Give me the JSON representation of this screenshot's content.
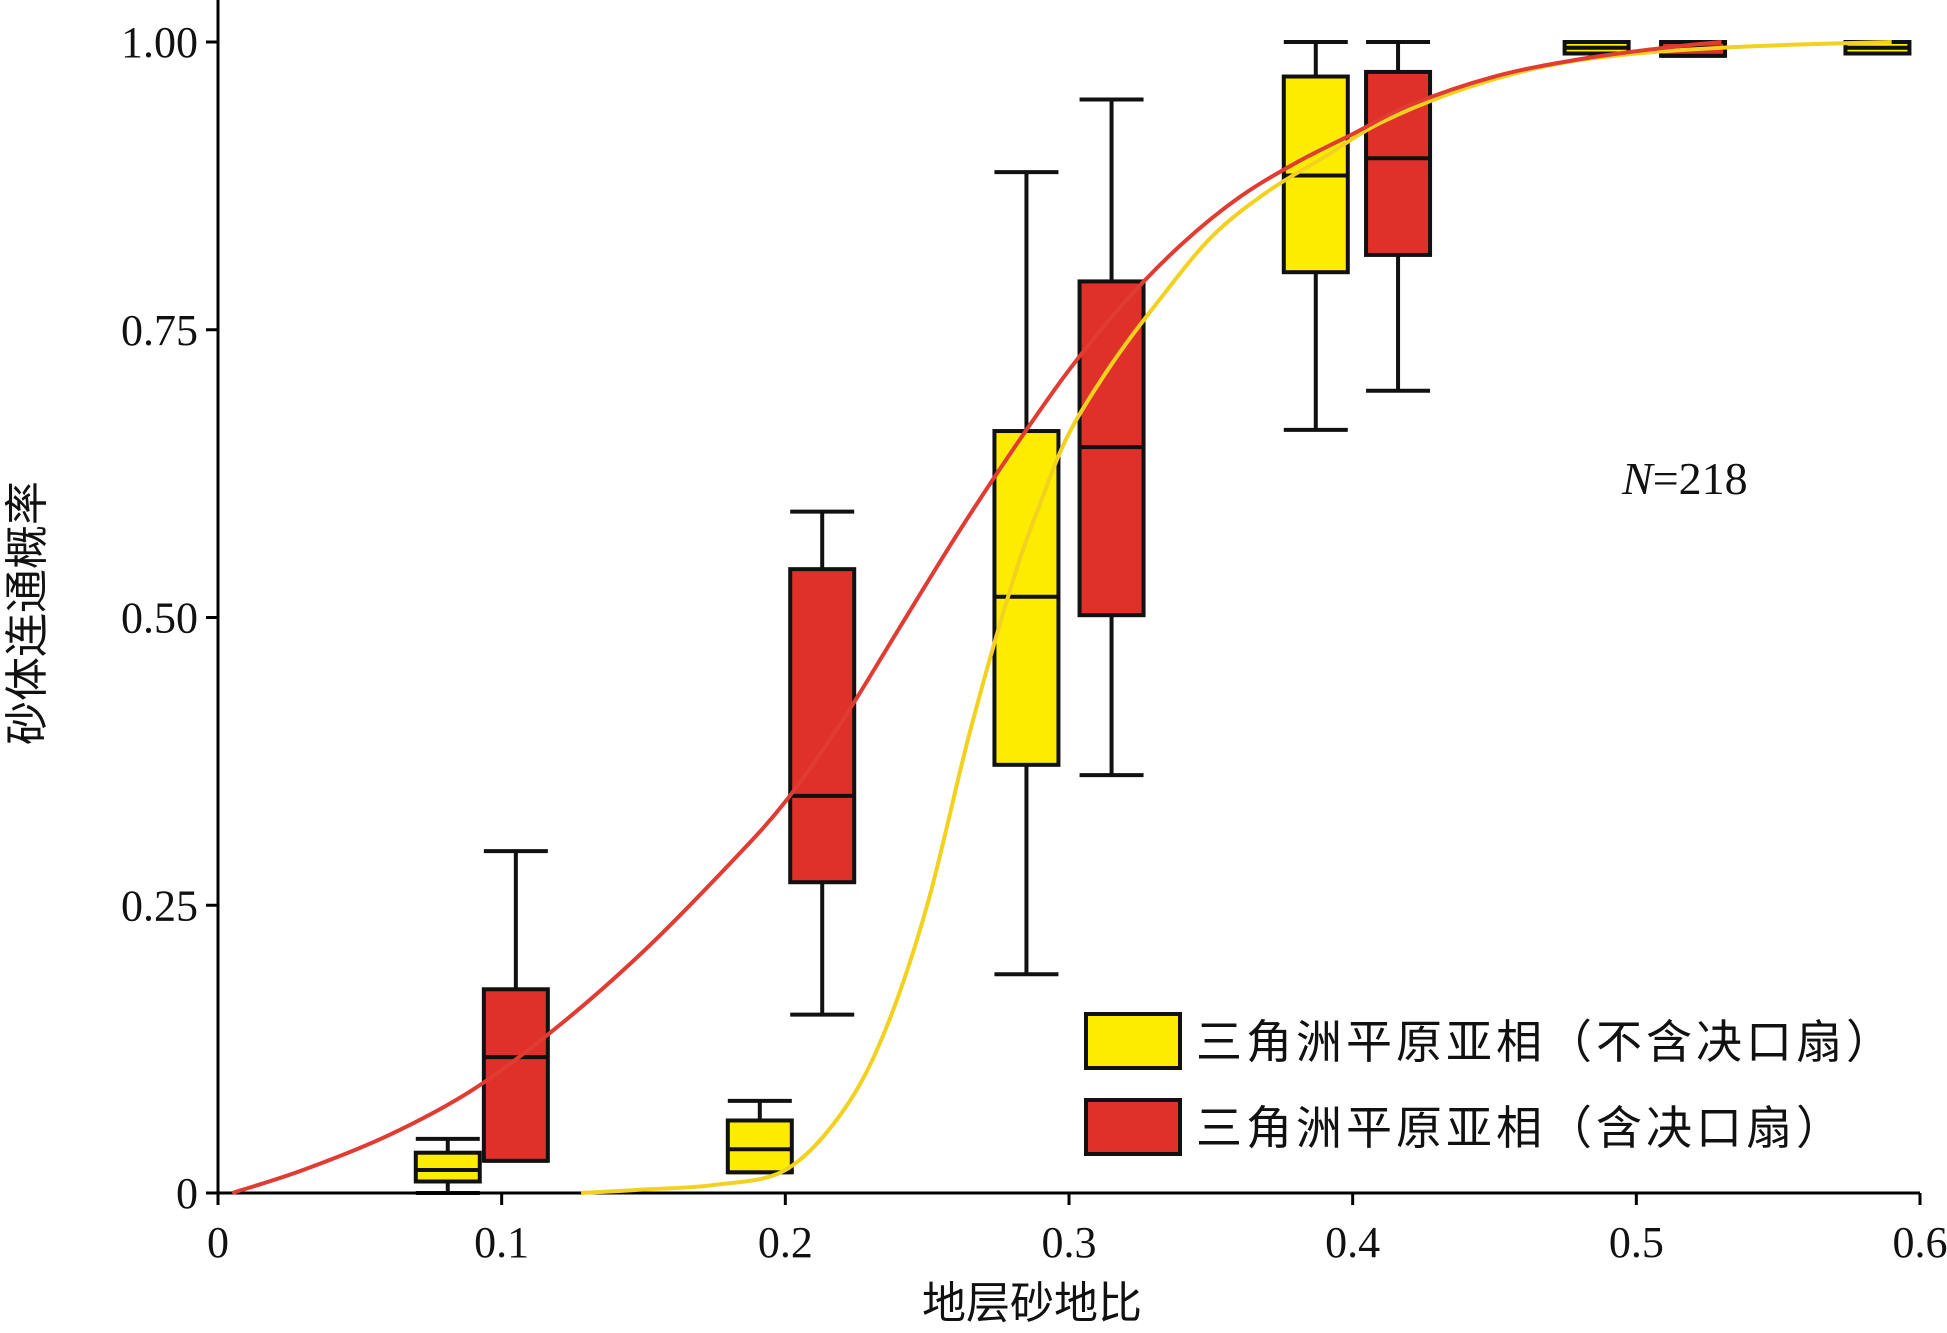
{
  "chart_data": {
    "type": "box",
    "xlabel": "地层砂地比",
    "ylabel": "砂体连通概率",
    "xlim": [
      0,
      0.6
    ],
    "ylim": [
      0,
      1.0
    ],
    "x_ticks": [
      "0",
      "0.1",
      "0.2",
      "0.3",
      "0.4",
      "0.5",
      "0.6"
    ],
    "y_ticks": [
      "0",
      "0.25",
      "0.50",
      "0.75",
      "1.00"
    ],
    "annotation": {
      "italic": "N",
      "rest": "=218"
    },
    "colors": {
      "no_fan": "#fdec00",
      "with_fan": "#e0302a",
      "no_fan_curve": "#f2d21e",
      "with_fan_curve": "#e03c32"
    },
    "series": [
      {
        "name": "三角洲平原亚相（不含决口扇）",
        "color": "#fdec00",
        "boxes": [
          {
            "x": 0.081,
            "min": 0.0,
            "q1": 0.01,
            "median": 0.02,
            "q3": 0.035,
            "max": 0.047
          },
          {
            "x": 0.191,
            "min": 0.018,
            "q1": 0.018,
            "median": 0.038,
            "q3": 0.063,
            "max": 0.08
          },
          {
            "x": 0.285,
            "min": 0.19,
            "q1": 0.372,
            "median": 0.518,
            "q3": 0.662,
            "max": 0.887
          },
          {
            "x": 0.387,
            "min": 0.663,
            "q1": 0.8,
            "median": 0.884,
            "q3": 0.97,
            "max": 1.0
          },
          {
            "x": 0.486,
            "min": 0.99,
            "q1": 0.99,
            "median": 0.995,
            "q3": 1.0,
            "max": 1.0
          },
          {
            "x": 0.585,
            "min": 0.99,
            "q1": 0.99,
            "median": 0.995,
            "q3": 1.0,
            "max": 1.0
          }
        ],
        "curve": {
          "x": [
            0.128,
            0.15,
            0.175,
            0.2,
            0.22,
            0.235,
            0.25,
            0.265,
            0.28,
            0.29,
            0.3,
            0.315,
            0.33,
            0.35,
            0.37,
            0.39,
            0.41,
            0.44,
            0.47,
            0.5,
            0.53,
            0.56,
            0.59
          ],
          "y": [
            0.0,
            0.003,
            0.007,
            0.02,
            0.07,
            0.14,
            0.25,
            0.4,
            0.53,
            0.6,
            0.66,
            0.72,
            0.77,
            0.83,
            0.87,
            0.9,
            0.93,
            0.96,
            0.98,
            0.99,
            0.995,
            0.998,
            1.0
          ]
        }
      },
      {
        "name": "三角洲平原亚相（含决口扇）",
        "color": "#e0302a",
        "boxes": [
          {
            "x": 0.105,
            "min": 0.028,
            "q1": 0.028,
            "median": 0.118,
            "q3": 0.177,
            "max": 0.297
          },
          {
            "x": 0.213,
            "min": 0.155,
            "q1": 0.27,
            "median": 0.345,
            "q3": 0.542,
            "max": 0.592
          },
          {
            "x": 0.315,
            "min": 0.363,
            "q1": 0.502,
            "median": 0.648,
            "q3": 0.792,
            "max": 0.95
          },
          {
            "x": 0.416,
            "min": 0.697,
            "q1": 0.815,
            "median": 0.899,
            "q3": 0.974,
            "max": 1.0
          },
          {
            "x": 0.52,
            "min": 0.988,
            "q1": 0.988,
            "median": 0.995,
            "q3": 1.0,
            "max": 1.0
          }
        ],
        "curve": {
          "x": [
            0.005,
            0.03,
            0.06,
            0.09,
            0.12,
            0.15,
            0.18,
            0.2,
            0.22,
            0.24,
            0.26,
            0.28,
            0.3,
            0.32,
            0.34,
            0.36,
            0.38,
            0.4,
            0.42,
            0.45,
            0.48,
            0.51,
            0.53
          ],
          "y": [
            0.0,
            0.02,
            0.05,
            0.09,
            0.145,
            0.21,
            0.285,
            0.34,
            0.41,
            0.49,
            0.57,
            0.645,
            0.715,
            0.775,
            0.825,
            0.865,
            0.895,
            0.92,
            0.945,
            0.97,
            0.985,
            0.995,
            1.0
          ]
        }
      }
    ]
  }
}
